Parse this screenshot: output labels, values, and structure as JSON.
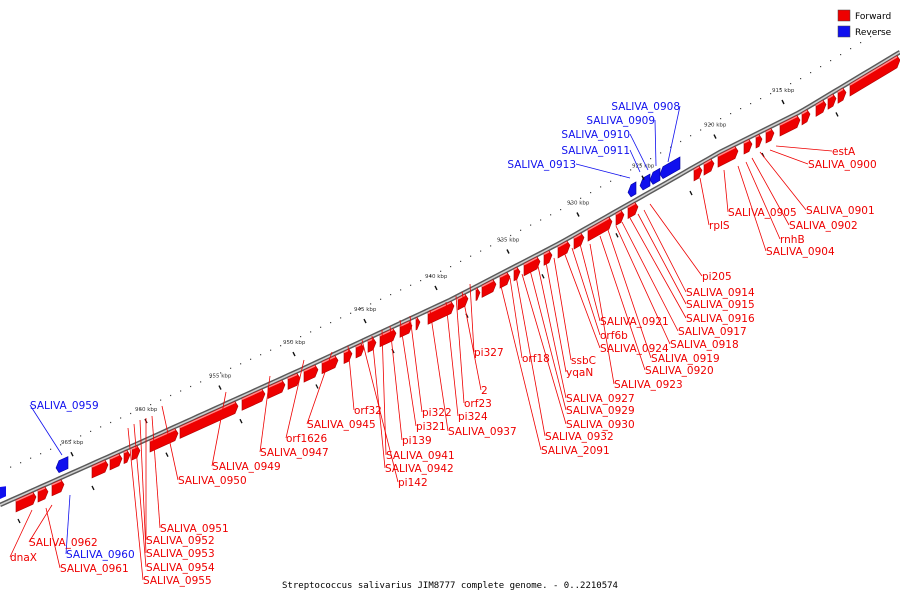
{
  "caption_title": "Streptococcus salivarius JIM8777 complete genome. - 0..2210574",
  "legend": [
    {
      "label": "Forward",
      "color": "#ee0000"
    },
    {
      "label": "Reverse",
      "color": "#1010ee"
    }
  ],
  "colors": {
    "forward": "#ee0000",
    "reverse": "#1010ee",
    "backbone": "#9a9a9a"
  },
  "kbp_ticks": [
    "915 kbp",
    "920 kbp",
    "925 kbp",
    "930 kbp",
    "935 kbp",
    "940 kbp",
    "945 kbp",
    "950 kbp",
    "955 kbp",
    "960 kbp",
    "965 kbp"
  ],
  "reverse_labels": [
    "SALIVA_0908",
    "SALIVA_0909",
    "SALIVA_0910",
    "SALIVA_0911",
    "SALIVA_0913",
    "SALIVA_0959",
    "SALIVA_0960"
  ],
  "forward_labels": [
    "estA",
    "SALIVA_0900",
    "SALIVA_0901",
    "SALIVA_0902",
    "rnhB",
    "SALIVA_0904",
    "SALIVA_0905",
    "rplS",
    "pi205",
    "SALIVA_0914",
    "SALIVA_0915",
    "SALIVA_0916",
    "SALIVA_0917",
    "SALIVA_0918",
    "SALIVA_0919",
    "SALIVA_0920",
    "SALIVA_0921",
    "orf6b",
    "SALIVA_0924",
    "ssbC",
    "yqaN",
    "SALIVA_0923",
    "orf18",
    "pi327",
    "SALIVA_0927",
    "SALIVA_0929",
    "SALIVA_0930",
    "SALIVA_0932",
    "SALIVA_2091",
    "2",
    "orf23",
    "pi324",
    "SALIVA_0937",
    "pi322",
    "pi321",
    "pi139",
    "SALIVA_0941",
    "SALIVA_0942",
    "pi142",
    "orf32",
    "SALIVA_0945",
    "orf1626",
    "SALIVA_0947",
    "SALIVA_0949",
    "SALIVA_0950",
    "SALIVA_0951",
    "SALIVA_0952",
    "SALIVA_0953",
    "SALIVA_0954",
    "SALIVA_0955",
    "SALIVA_0962",
    "SALIVA_0961",
    "dnaX"
  ]
}
